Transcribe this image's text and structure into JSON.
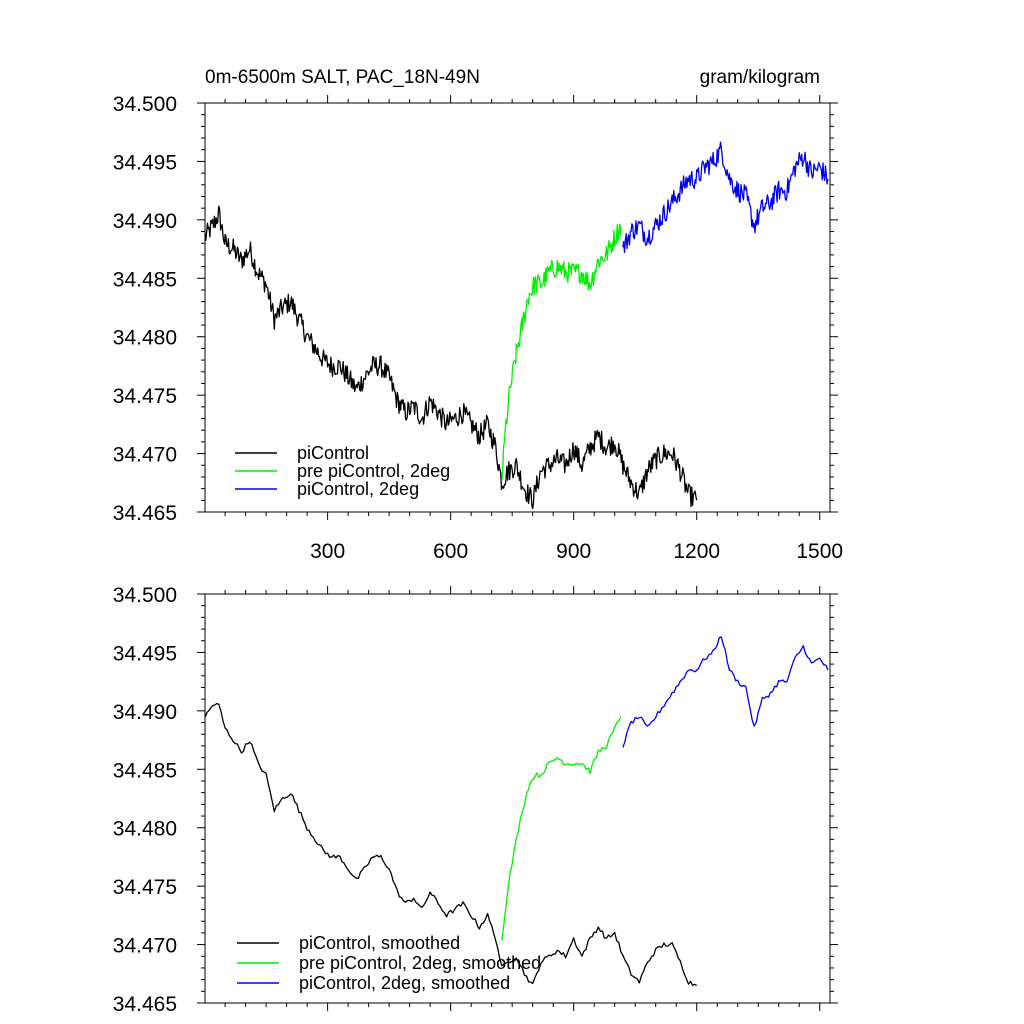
{
  "chart_data": [
    {
      "type": "line",
      "title_left": "0m-6500m SALT, PAC_18N-49N",
      "title_right": "gram/kilogram",
      "xlabel": "",
      "ylabel": "",
      "xlim": [
        1,
        1525
      ],
      "ylim": [
        34.465,
        34.5
      ],
      "x_ticks": [
        300,
        600,
        900,
        1200,
        1500
      ],
      "x_tick_labels": [
        "300",
        "600",
        "900",
        "1200",
        "1500"
      ],
      "y_ticks": [
        34.465,
        34.47,
        34.475,
        34.48,
        34.485,
        34.49,
        34.495,
        34.5
      ],
      "y_tick_labels": [
        "34.465",
        "34.470",
        "34.475",
        "34.480",
        "34.485",
        "34.490",
        "34.495",
        "34.500"
      ],
      "grid": false,
      "legend_position": "bottom-left",
      "smoothed": false,
      "series": [
        {
          "name": "piControl",
          "color": "#000000",
          "points": [
            [
              1,
              34.4885
            ],
            [
              20,
              34.4895
            ],
            [
              35,
              34.4905
            ],
            [
              50,
              34.488
            ],
            [
              70,
              34.4875
            ],
            [
              90,
              34.4865
            ],
            [
              110,
              34.4875
            ],
            [
              130,
              34.4855
            ],
            [
              150,
              34.4845
            ],
            [
              170,
              34.4815
            ],
            [
              190,
              34.4825
            ],
            [
              210,
              34.483
            ],
            [
              230,
              34.4815
            ],
            [
              250,
              34.48
            ],
            [
              270,
              34.479
            ],
            [
              290,
              34.478
            ],
            [
              310,
              34.4775
            ],
            [
              330,
              34.4775
            ],
            [
              350,
              34.4765
            ],
            [
              370,
              34.4755
            ],
            [
              390,
              34.4765
            ],
            [
              410,
              34.4775
            ],
            [
              430,
              34.4775
            ],
            [
              450,
              34.4765
            ],
            [
              470,
              34.4745
            ],
            [
              490,
              34.4735
            ],
            [
              510,
              34.474
            ],
            [
              530,
              34.473
            ],
            [
              550,
              34.4745
            ],
            [
              570,
              34.4735
            ],
            [
              590,
              34.4725
            ],
            [
              610,
              34.473
            ],
            [
              630,
              34.4735
            ],
            [
              650,
              34.4725
            ],
            [
              670,
              34.4715
            ],
            [
              690,
              34.4725
            ],
            [
              710,
              34.4705
            ],
            [
              725,
              34.4675
            ],
            [
              740,
              34.4685
            ],
            [
              760,
              34.469
            ],
            [
              780,
              34.467
            ],
            [
              800,
              34.466
            ],
            [
              820,
              34.4685
            ],
            [
              840,
              34.469
            ],
            [
              860,
              34.4695
            ],
            [
              880,
              34.469
            ],
            [
              900,
              34.4705
            ],
            [
              920,
              34.469
            ],
            [
              940,
              34.4705
            ],
            [
              960,
              34.4715
            ],
            [
              980,
              34.4705
            ],
            [
              1000,
              34.471
            ],
            [
              1020,
              34.469
            ],
            [
              1040,
              34.4675
            ],
            [
              1060,
              34.4665
            ],
            [
              1080,
              34.4685
            ],
            [
              1100,
              34.4695
            ],
            [
              1120,
              34.47
            ],
            [
              1140,
              34.47
            ],
            [
              1160,
              34.4685
            ],
            [
              1180,
              34.4665
            ],
            [
              1200,
              34.466
            ]
          ]
        },
        {
          "name": "pre piControl, 2deg",
          "color": "#00ee00",
          "points": [
            [
              725,
              34.468
            ],
            [
              735,
              34.4725
            ],
            [
              745,
              34.4755
            ],
            [
              760,
              34.4785
            ],
            [
              775,
              34.481
            ],
            [
              790,
              34.4835
            ],
            [
              805,
              34.4845
            ],
            [
              820,
              34.4845
            ],
            [
              840,
              34.4855
            ],
            [
              860,
              34.486
            ],
            [
              880,
              34.4855
            ],
            [
              900,
              34.4855
            ],
            [
              920,
              34.4855
            ],
            [
              940,
              34.4845
            ],
            [
              960,
              34.4865
            ],
            [
              980,
              34.487
            ],
            [
              1000,
              34.4885
            ],
            [
              1015,
              34.4895
            ]
          ]
        },
        {
          "name": "piControl, 2deg",
          "color": "#0000ee",
          "points": [
            [
              1020,
              34.4875
            ],
            [
              1040,
              34.489
            ],
            [
              1060,
              34.4895
            ],
            [
              1080,
              34.4885
            ],
            [
              1100,
              34.4895
            ],
            [
              1120,
              34.4905
            ],
            [
              1140,
              34.4915
            ],
            [
              1160,
              34.4925
            ],
            [
              1180,
              34.4935
            ],
            [
              1200,
              34.4935
            ],
            [
              1220,
              34.4945
            ],
            [
              1240,
              34.495
            ],
            [
              1260,
              34.496
            ],
            [
              1280,
              34.4935
            ],
            [
              1300,
              34.4925
            ],
            [
              1320,
              34.492
            ],
            [
              1340,
              34.4895
            ],
            [
              1360,
              34.491
            ],
            [
              1380,
              34.4915
            ],
            [
              1400,
              34.4925
            ],
            [
              1420,
              34.4925
            ],
            [
              1440,
              34.4945
            ],
            [
              1460,
              34.4955
            ],
            [
              1480,
              34.494
            ],
            [
              1500,
              34.4945
            ],
            [
              1520,
              34.4935
            ]
          ]
        }
      ]
    },
    {
      "type": "line",
      "title_left": "",
      "title_right": "",
      "xlabel": "",
      "ylabel": "",
      "xlim": [
        1,
        1525
      ],
      "ylim": [
        34.465,
        34.5
      ],
      "x_ticks": [
        300,
        600,
        900,
        1200,
        1500
      ],
      "x_tick_labels": [],
      "y_ticks": [
        34.465,
        34.47,
        34.475,
        34.48,
        34.485,
        34.49,
        34.495,
        34.5
      ],
      "y_tick_labels": [
        "34.465",
        "34.470",
        "34.475",
        "34.480",
        "34.485",
        "34.490",
        "34.495",
        "34.500"
      ],
      "grid": false,
      "legend_position": "bottom-left",
      "smoothed": true,
      "series": [
        {
          "name": "piControl, smoothed",
          "color": "#000000",
          "points": [
            [
              1,
              34.4895
            ],
            [
              20,
              34.4905
            ],
            [
              35,
              34.4905
            ],
            [
              50,
              34.4885
            ],
            [
              70,
              34.4875
            ],
            [
              90,
              34.4865
            ],
            [
              110,
              34.4875
            ],
            [
              130,
              34.4855
            ],
            [
              150,
              34.4845
            ],
            [
              170,
              34.4815
            ],
            [
              190,
              34.4825
            ],
            [
              210,
              34.483
            ],
            [
              230,
              34.4815
            ],
            [
              250,
              34.48
            ],
            [
              270,
              34.479
            ],
            [
              290,
              34.478
            ],
            [
              310,
              34.4775
            ],
            [
              330,
              34.4775
            ],
            [
              350,
              34.4765
            ],
            [
              370,
              34.4755
            ],
            [
              390,
              34.4765
            ],
            [
              410,
              34.4775
            ],
            [
              430,
              34.4775
            ],
            [
              450,
              34.4765
            ],
            [
              470,
              34.4745
            ],
            [
              490,
              34.4735
            ],
            [
              510,
              34.474
            ],
            [
              530,
              34.473
            ],
            [
              550,
              34.4745
            ],
            [
              570,
              34.4735
            ],
            [
              590,
              34.4725
            ],
            [
              610,
              34.473
            ],
            [
              630,
              34.4735
            ],
            [
              650,
              34.4725
            ],
            [
              670,
              34.4715
            ],
            [
              690,
              34.4725
            ],
            [
              710,
              34.4705
            ],
            [
              725,
              34.468
            ],
            [
              740,
              34.4685
            ],
            [
              760,
              34.469
            ],
            [
              780,
              34.4675
            ],
            [
              800,
              34.4665
            ],
            [
              820,
              34.4685
            ],
            [
              840,
              34.469
            ],
            [
              860,
              34.4695
            ],
            [
              880,
              34.469
            ],
            [
              900,
              34.4705
            ],
            [
              920,
              34.469
            ],
            [
              940,
              34.4705
            ],
            [
              960,
              34.4715
            ],
            [
              980,
              34.4705
            ],
            [
              1000,
              34.471
            ],
            [
              1020,
              34.469
            ],
            [
              1040,
              34.4675
            ],
            [
              1060,
              34.4668
            ],
            [
              1080,
              34.4685
            ],
            [
              1100,
              34.4695
            ],
            [
              1120,
              34.47
            ],
            [
              1140,
              34.47
            ],
            [
              1160,
              34.4685
            ],
            [
              1180,
              34.4668
            ],
            [
              1200,
              34.4665
            ]
          ]
        },
        {
          "name": "pre piControl, 2deg, smoothed",
          "color": "#00ee00",
          "points": [
            [
              725,
              34.4705
            ],
            [
              735,
              34.4735
            ],
            [
              745,
              34.476
            ],
            [
              760,
              34.479
            ],
            [
              775,
              34.4815
            ],
            [
              790,
              34.4835
            ],
            [
              805,
              34.4845
            ],
            [
              820,
              34.4845
            ],
            [
              840,
              34.4855
            ],
            [
              860,
              34.486
            ],
            [
              880,
              34.4855
            ],
            [
              900,
              34.4855
            ],
            [
              920,
              34.4855
            ],
            [
              940,
              34.4848
            ],
            [
              960,
              34.4865
            ],
            [
              980,
              34.487
            ],
            [
              1000,
              34.4885
            ],
            [
              1015,
              34.4895
            ]
          ]
        },
        {
          "name": "piControl, 2deg, smoothed",
          "color": "#0000ee",
          "points": [
            [
              1020,
              34.487
            ],
            [
              1040,
              34.489
            ],
            [
              1060,
              34.4895
            ],
            [
              1080,
              34.4885
            ],
            [
              1100,
              34.4895
            ],
            [
              1120,
              34.4905
            ],
            [
              1140,
              34.4915
            ],
            [
              1160,
              34.4925
            ],
            [
              1180,
              34.4935
            ],
            [
              1200,
              34.4935
            ],
            [
              1220,
              34.4945
            ],
            [
              1240,
              34.495
            ],
            [
              1260,
              34.4965
            ],
            [
              1280,
              34.4935
            ],
            [
              1300,
              34.4925
            ],
            [
              1320,
              34.492
            ],
            [
              1340,
              34.4885
            ],
            [
              1360,
              34.491
            ],
            [
              1380,
              34.4915
            ],
            [
              1400,
              34.4925
            ],
            [
              1420,
              34.4925
            ],
            [
              1440,
              34.4945
            ],
            [
              1460,
              34.4955
            ],
            [
              1480,
              34.494
            ],
            [
              1500,
              34.4945
            ],
            [
              1520,
              34.4935
            ]
          ]
        }
      ]
    }
  ]
}
